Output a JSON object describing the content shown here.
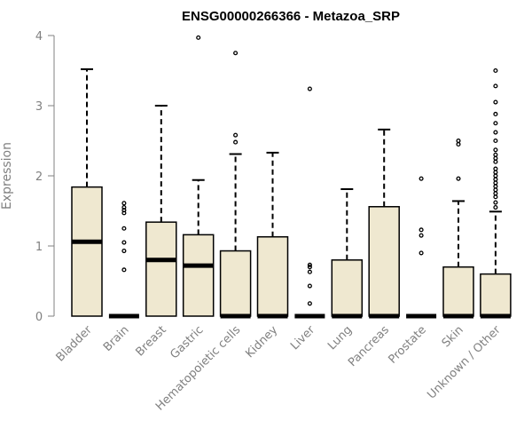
{
  "chart_data": {
    "type": "boxplot",
    "title": "ENSG00000266366 - Metazoa_SRP",
    "xlabel": "",
    "ylabel": "Expression",
    "ylim": [
      0,
      4
    ],
    "yticks": [
      0,
      1,
      2,
      3,
      4
    ],
    "grid": false,
    "box_fill": "#efe8d0",
    "box_stroke": "#000000",
    "axis_color": "#808080",
    "categories": [
      "Bladder",
      "Brain",
      "Breast",
      "Gastric",
      "Hematopoietic cells",
      "Kidney",
      "Liver",
      "Lung",
      "Pancreas",
      "Prostate",
      "Skin",
      "Unknown / Other"
    ],
    "boxes": [
      {
        "min": 0,
        "q1": 0,
        "median": 1.06,
        "q3": 1.84,
        "max": 3.52,
        "outliers": []
      },
      {
        "min": 0,
        "q1": 0,
        "median": 0,
        "q3": 0,
        "max": 0,
        "outliers": [
          0.66,
          0.93,
          1.05,
          1.25,
          1.47,
          1.51,
          1.55,
          1.61
        ]
      },
      {
        "min": 0,
        "q1": 0,
        "median": 0.8,
        "q3": 1.34,
        "max": 3.0,
        "outliers": []
      },
      {
        "min": 0,
        "q1": 0,
        "median": 0.72,
        "q3": 1.16,
        "max": 1.94,
        "outliers": [
          3.97
        ]
      },
      {
        "min": 0,
        "q1": 0,
        "median": 0,
        "q3": 0.93,
        "max": 2.31,
        "outliers": [
          2.48,
          2.58,
          3.75
        ]
      },
      {
        "min": 0,
        "q1": 0,
        "median": 0,
        "q3": 1.13,
        "max": 2.33,
        "outliers": []
      },
      {
        "min": 0,
        "q1": 0,
        "median": 0,
        "q3": 0,
        "max": 0,
        "outliers": [
          0.18,
          0.43,
          0.63,
          0.7,
          0.73,
          3.24
        ]
      },
      {
        "min": 0,
        "q1": 0,
        "median": 0,
        "q3": 0.8,
        "max": 1.81,
        "outliers": []
      },
      {
        "min": 0,
        "q1": 0,
        "median": 0,
        "q3": 1.56,
        "max": 2.66,
        "outliers": []
      },
      {
        "min": 0,
        "q1": 0,
        "median": 0,
        "q3": 0,
        "max": 0,
        "outliers": [
          0.9,
          1.15,
          1.23,
          1.96
        ]
      },
      {
        "min": 0,
        "q1": 0,
        "median": 0,
        "q3": 0.7,
        "max": 1.64,
        "outliers": [
          1.96,
          2.45,
          2.5
        ]
      },
      {
        "min": 0,
        "q1": 0,
        "median": 0,
        "q3": 0.6,
        "max": 1.49,
        "outliers": [
          1.55,
          1.62,
          1.7,
          1.75,
          1.8,
          1.85,
          1.9,
          1.95,
          2.0,
          2.05,
          2.1,
          2.2,
          2.25,
          2.3,
          2.37,
          2.5,
          2.62,
          2.75,
          2.88,
          3.05,
          3.28,
          3.5
        ]
      }
    ]
  }
}
